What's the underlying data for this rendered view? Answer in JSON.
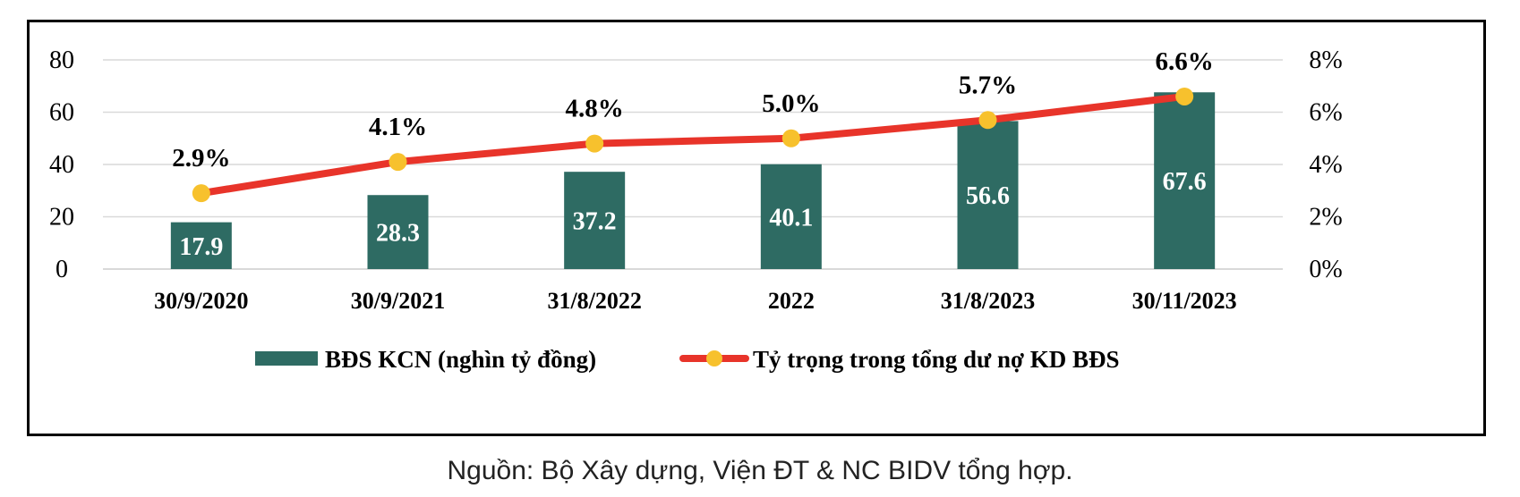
{
  "chart_data": {
    "type": "bar",
    "categories": [
      "30/9/2020",
      "30/9/2021",
      "31/8/2022",
      "2022",
      "31/8/2023",
      "30/11/2023"
    ],
    "series": [
      {
        "name": "BĐS KCN (nghìn tỷ đồng)",
        "type": "bar",
        "axis": "left",
        "values": [
          17.9,
          28.3,
          37.2,
          40.1,
          56.6,
          67.6
        ],
        "labels": [
          "17.9",
          "28.3",
          "37.2",
          "40.1",
          "56.6",
          "67.6"
        ]
      },
      {
        "name": "Tỷ trọng trong tổng dư nợ KD BĐS",
        "type": "line",
        "axis": "right",
        "values": [
          2.9,
          4.1,
          4.8,
          5.0,
          5.7,
          6.6
        ],
        "labels": [
          "2.9%",
          "4.1%",
          "4.8%",
          "5.0%",
          "5.7%",
          "6.6%"
        ]
      }
    ],
    "left_axis": {
      "ylim": [
        0,
        80
      ],
      "ticks": [
        "0",
        "20",
        "40",
        "60",
        "80"
      ]
    },
    "right_axis": {
      "ylim": [
        0,
        8
      ],
      "ticks": [
        "0%",
        "2%",
        "4%",
        "6%",
        "8%"
      ]
    },
    "grid": true,
    "legend_position": "bottom",
    "colors": {
      "bar": "#2e6b63",
      "line": "#e8342a",
      "marker": "#f7c12d",
      "grid": "#d9d9d9"
    }
  },
  "source_note": "Nguồn: Bộ Xây dựng, Viện ĐT & NC BIDV tổng hợp."
}
